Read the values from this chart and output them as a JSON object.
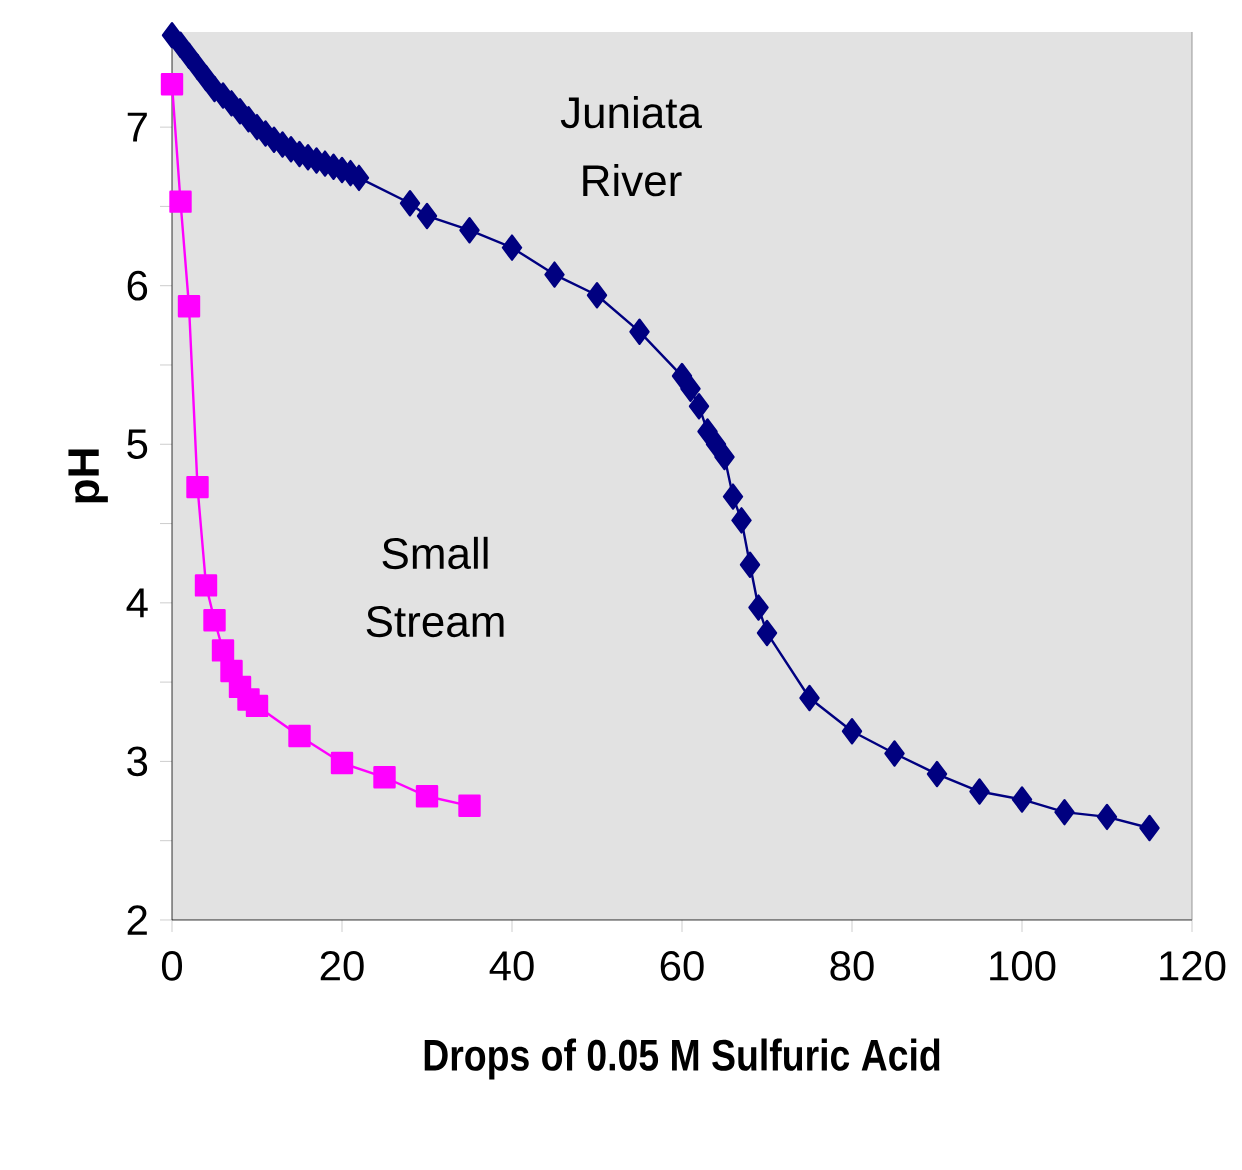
{
  "chart_data": {
    "type": "line",
    "xlabel": "Drops of 0.05 M Sulfuric Acid",
    "ylabel": "pH",
    "xlim": [
      0,
      120
    ],
    "ylim": [
      2,
      7.6
    ],
    "xticks": [
      0,
      20,
      40,
      60,
      80,
      100,
      120
    ],
    "yticks": [
      2,
      3,
      4,
      5,
      6,
      7
    ],
    "legend": false,
    "grid": false,
    "series": [
      {
        "name": "Juniata River",
        "color": "#000080",
        "marker": "diamond",
        "x": [
          0,
          1,
          2,
          3,
          4,
          5,
          6,
          7,
          8,
          9,
          10,
          11,
          12,
          13,
          14,
          15,
          16,
          17,
          18,
          19,
          20,
          21,
          22,
          28,
          30,
          35,
          40,
          45,
          50,
          55,
          60,
          61,
          62,
          63,
          64,
          65,
          66,
          67,
          68,
          69,
          70,
          75,
          80,
          85,
          90,
          95,
          100,
          105,
          110,
          115
        ],
        "values": [
          7.58,
          7.52,
          7.45,
          7.38,
          7.31,
          7.24,
          7.2,
          7.15,
          7.1,
          7.05,
          7.0,
          6.96,
          6.92,
          6.89,
          6.86,
          6.83,
          6.81,
          6.79,
          6.77,
          6.75,
          6.73,
          6.71,
          6.68,
          6.52,
          6.44,
          6.35,
          6.24,
          6.07,
          5.94,
          5.71,
          5.43,
          5.35,
          5.24,
          5.08,
          5.0,
          4.92,
          4.67,
          4.52,
          4.24,
          3.97,
          3.81,
          3.4,
          3.19,
          3.05,
          2.92,
          2.81,
          2.76,
          2.68,
          2.65,
          2.58
        ]
      },
      {
        "name": "Small Stream",
        "color": "#ff00ff",
        "marker": "square",
        "x": [
          0,
          1,
          2,
          3,
          4,
          5,
          6,
          7,
          8,
          9,
          10,
          15,
          20,
          25,
          30,
          35
        ],
        "values": [
          7.27,
          6.53,
          5.87,
          4.73,
          4.11,
          3.89,
          3.7,
          3.57,
          3.47,
          3.39,
          3.35,
          3.16,
          2.99,
          2.9,
          2.78,
          2.72
        ]
      }
    ]
  }
}
